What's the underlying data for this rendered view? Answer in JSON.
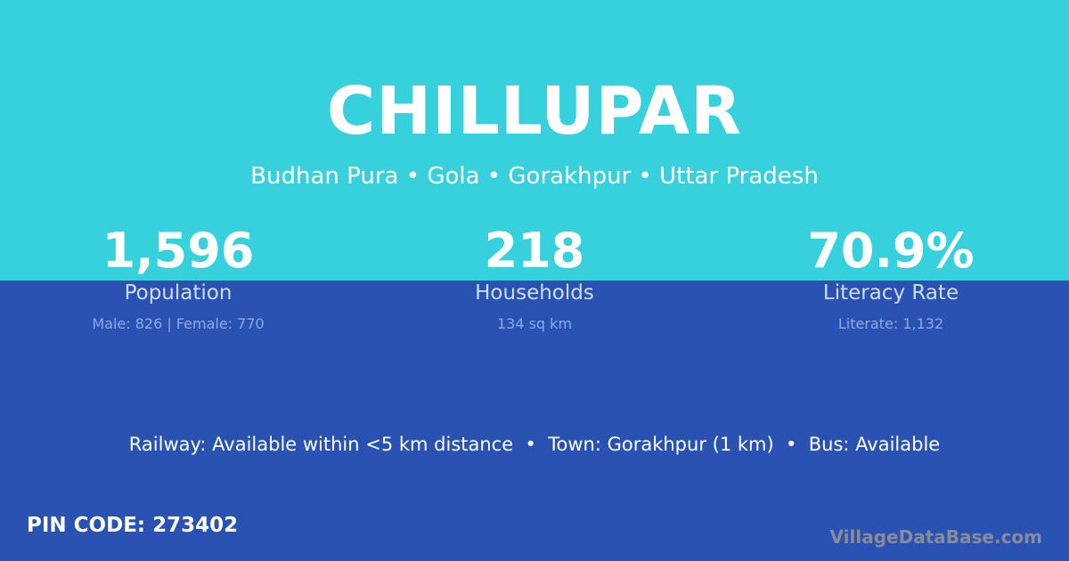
{
  "title": "CHILLUPAR",
  "subtitle": "Budhan Pura • Gola • Gorakhpur • Uttar Pradesh",
  "stats": [
    {
      "value": "1,596",
      "label": "Population",
      "detail": "Male: 826 | Female: 770"
    },
    {
      "value": "218",
      "label": "Households",
      "detail": "134 sq km"
    },
    {
      "value": "70.9%",
      "label": "Literacy Rate",
      "detail": "Literate: 1,132"
    }
  ],
  "info": "Railway: Available within <5 km distance  •  Town: Gorakhpur (1 km)  •  Bus: Available",
  "pin": "PIN CODE: 273402",
  "brand": "VillageDataBase.com",
  "colors": {
    "top": "#36d1dc",
    "bottom": "#2952b3"
  }
}
